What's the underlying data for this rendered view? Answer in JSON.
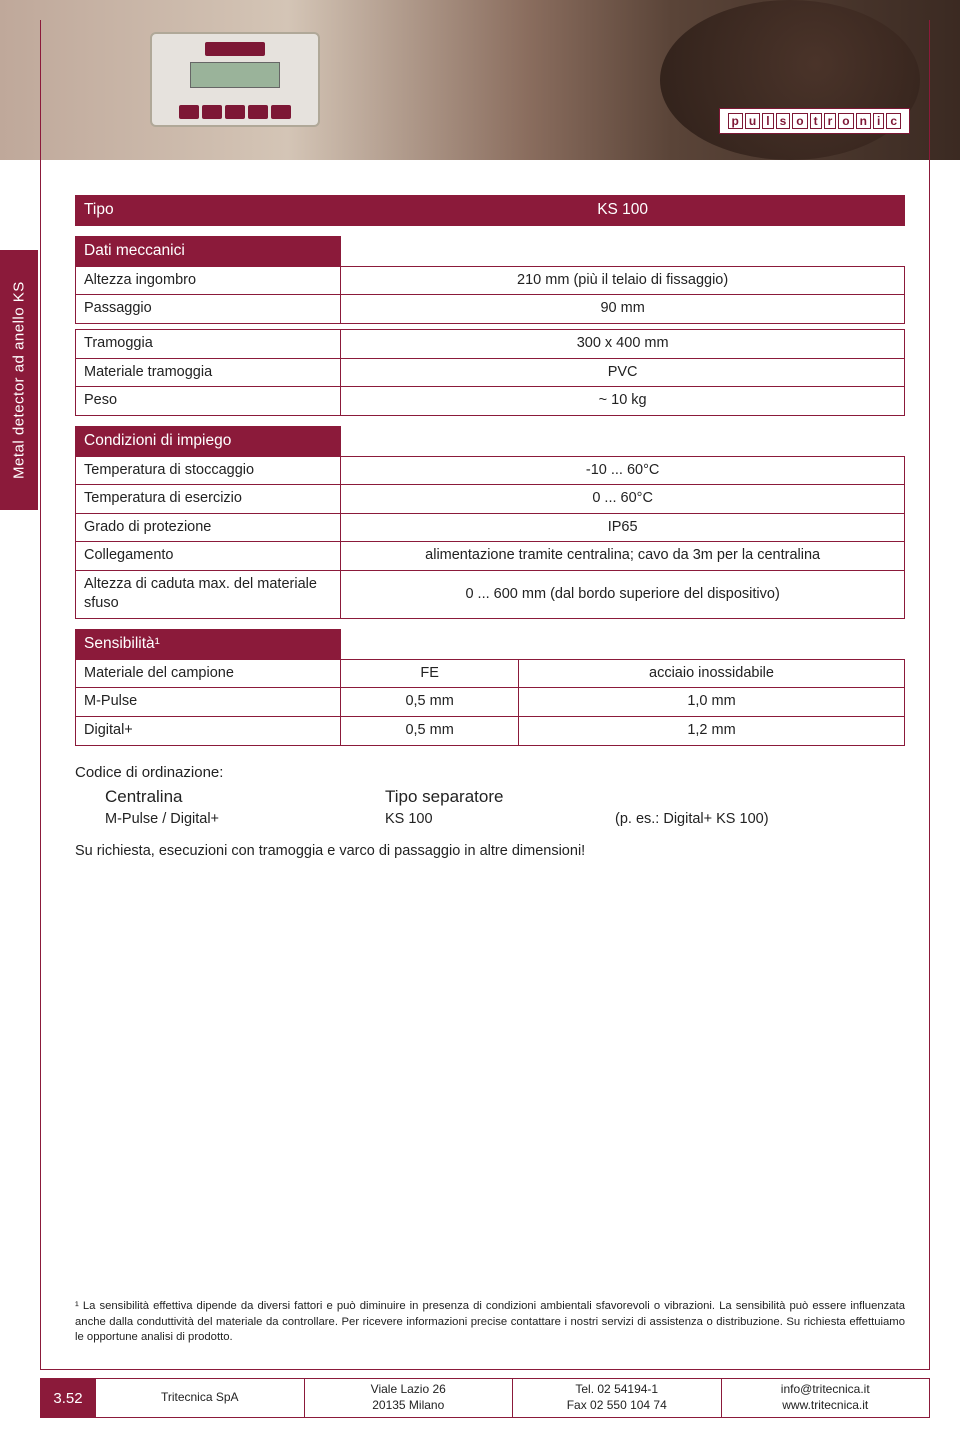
{
  "brand_letters": [
    "p",
    "u",
    "l",
    "s",
    "o",
    "t",
    "r",
    "o",
    "n",
    "i",
    "c"
  ],
  "sidebar_label": "Metal detector ad anello KS",
  "tables": {
    "tipo": {
      "header": "Tipo",
      "value": "KS 100"
    },
    "dati": {
      "header": "Dati meccanici",
      "rows": [
        {
          "label": "Altezza ingombro",
          "value": "210 mm (più il telaio di fissaggio)"
        },
        {
          "label": "Passaggio",
          "value": "90 mm"
        }
      ],
      "rows2": [
        {
          "label": "Tramoggia",
          "value": "300 x 400 mm"
        },
        {
          "label": "Materiale tramoggia",
          "value": "PVC"
        },
        {
          "label": "Peso",
          "value": "~ 10 kg"
        }
      ]
    },
    "cond": {
      "header": "Condizioni di impiego",
      "rows": [
        {
          "label": "Temperatura di stoccaggio",
          "value": "-10 ... 60°C"
        },
        {
          "label": "Temperatura di esercizio",
          "value": "0 ... 60°C"
        },
        {
          "label": "Grado di protezione",
          "value": "IP65"
        },
        {
          "label": "Collegamento",
          "value": "alimentazione tramite centralina; cavo da 3m per la centralina"
        },
        {
          "label": "Altezza di caduta max. del materiale sfuso",
          "value": "0 ... 600 mm (dal bordo superiore del dispositivo)"
        }
      ]
    },
    "sens": {
      "header": "Sensibilità¹",
      "cols": [
        "Materiale del campione",
        "FE",
        "acciaio inossidabile"
      ],
      "rows": [
        {
          "label": "M-Pulse",
          "v1": "0,5 mm",
          "v2": "1,0 mm"
        },
        {
          "label": "Digital+",
          "v1": "0,5 mm",
          "v2": "1,2 mm"
        }
      ]
    }
  },
  "order": {
    "title": "Codice di ordinazione:",
    "h1": "Centralina",
    "h2": "Tipo separatore",
    "c1": "M-Pulse / Digital+",
    "c2": "KS 100",
    "c3": "(p. es.: Digital+ KS 100)"
  },
  "note": "Su richiesta, esecuzioni con tramoggia e varco di passaggio in altre dimensioni!",
  "footnote": "¹ La sensibilità effettiva dipende da diversi fattori e può diminuire in presenza di condizioni ambientali sfavorevoli o vibrazioni. La sensibilità può essere influenzata anche dalla conduttività del materiale da controllare. Per ricevere informazioni precise contattare i nostri servizi di assistenza o distribuzione. Su richiesta effettuiamo le opportune analisi di prodotto.",
  "footer": {
    "page": "3.52",
    "company": "Tritecnica SpA",
    "addr1": "Viale Lazio 26",
    "addr2": "20135 Milano",
    "tel": "Tel. 02 54194-1",
    "fax": "Fax 02 550 104 74",
    "email": "info@tritecnica.it",
    "web": "www.tritecnica.it"
  },
  "colors": {
    "brand": "#8b1a3a",
    "text": "#222222",
    "white": "#ffffff"
  }
}
